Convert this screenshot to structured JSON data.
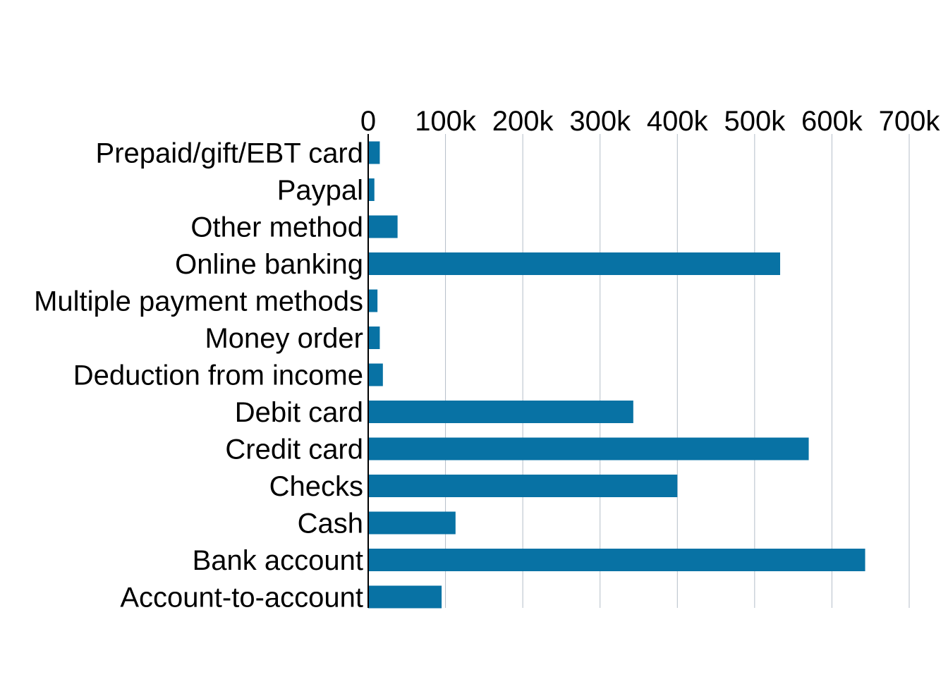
{
  "chart_data": {
    "type": "bar",
    "orientation": "horizontal",
    "title": "",
    "xlabel": "",
    "ylabel": "",
    "x_axis_position": "top",
    "grid": "vertical",
    "legend": "none",
    "xlim": [
      0,
      700000
    ],
    "x_ticks": [
      0,
      100000,
      200000,
      300000,
      400000,
      500000,
      600000,
      700000
    ],
    "x_tick_labels": [
      "0",
      "100k",
      "200k",
      "300k",
      "400k",
      "500k",
      "600k",
      "700k"
    ],
    "categories": [
      "Prepaid/gift/EBT card",
      "Paypal",
      "Other method",
      "Online banking",
      "Multiple payment methods",
      "Money order",
      "Deduction from income",
      "Debit card",
      "Credit card",
      "Checks",
      "Cash",
      "Bank account",
      "Account-to-account"
    ],
    "values": [
      15000,
      8000,
      38000,
      533000,
      12000,
      15000,
      19000,
      343000,
      570000,
      400000,
      113000,
      643000,
      95000
    ],
    "colors": {
      "bar": "#0872a4",
      "grid": "#b4bec8",
      "axis": "#000000"
    }
  }
}
